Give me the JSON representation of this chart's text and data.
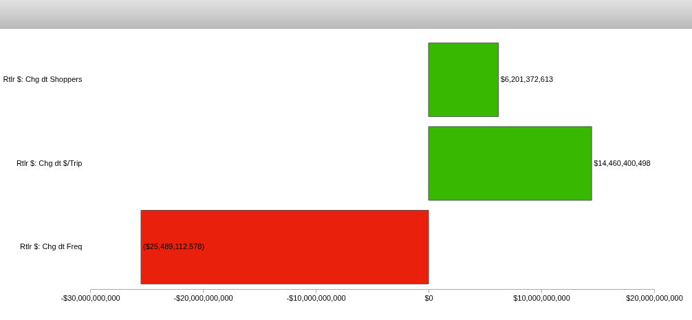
{
  "chart_data": {
    "type": "bar",
    "orientation": "horizontal",
    "categories": [
      "Rtlr $: Chg dt Shoppers",
      "Rtlr $: Chg dt $/Trip",
      "Rtlr $: Chg dt Freq"
    ],
    "values": [
      6201372613,
      14460400498,
      -25489112578
    ],
    "colors": [
      "#38b800",
      "#38b800",
      "#e8200c"
    ],
    "value_labels": [
      "$6,201,372,613",
      "$14,460,400,498",
      "($25,489,112,578)"
    ],
    "xlim": [
      -30000000000,
      20000000000
    ],
    "xticks": [
      {
        "value": -30000000000,
        "label": "-$30,000,000,000"
      },
      {
        "value": -20000000000,
        "label": "-$20,000,000,000"
      },
      {
        "value": -10000000000,
        "label": "-$10,000,000,000"
      },
      {
        "value": 0,
        "label": "$0"
      },
      {
        "value": 10000000000,
        "label": "$10,000,000,000"
      },
      {
        "value": 20000000000,
        "label": "$20,000,000,000"
      }
    ],
    "grid": false
  }
}
